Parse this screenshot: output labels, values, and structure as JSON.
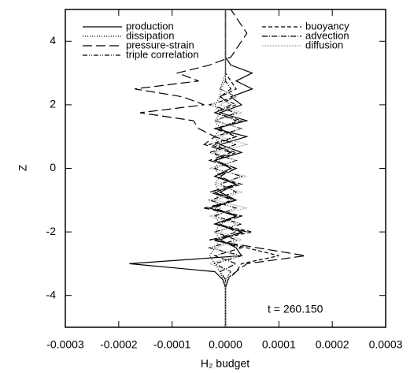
{
  "chart_data": {
    "type": "profile",
    "xlabel": "H₂ budget",
    "ylabel": "Z",
    "annotation": "t = 260.150",
    "xlim": [
      -0.0003,
      0.0003
    ],
    "xticks": [
      {
        "value": -0.0003,
        "label": "-0.0003"
      },
      {
        "value": -0.0002,
        "label": "-0.0002"
      },
      {
        "value": -0.0001,
        "label": "-0.0001"
      },
      {
        "value": 0,
        "label": "0.0000"
      },
      {
        "value": 0.0001,
        "label": "0.0001"
      },
      {
        "value": 0.0002,
        "label": "0.0002"
      },
      {
        "value": 0.0003,
        "label": "0.0003"
      }
    ],
    "ylim": [
      -5,
      5
    ],
    "yticks": [
      -4,
      -2,
      0,
      2,
      4
    ],
    "z": [
      -5,
      -4.75,
      -4.5,
      -4.25,
      -4,
      -3.75,
      -3.5,
      -3.25,
      -3,
      -2.75,
      -2.5,
      -2.25,
      -2,
      -1.75,
      -1.5,
      -1.25,
      -1,
      -0.75,
      -0.5,
      -0.25,
      0,
      0.25,
      0.5,
      0.75,
      1,
      1.25,
      1.5,
      1.75,
      2,
      2.25,
      2.5,
      2.75,
      3,
      3.25,
      3.5,
      3.75,
      4,
      4.25,
      4.5,
      4.75,
      5
    ],
    "series": [
      {
        "name": "production",
        "color": "#000000",
        "dash": "solid",
        "values": [
          0,
          0,
          0,
          0,
          0,
          0,
          -5e-06,
          -2e-05,
          -0.00018,
          3e-05,
          2e-05,
          -1e-05,
          3e-05,
          -2e-05,
          2e-05,
          -3e-05,
          2e-05,
          -1e-05,
          2e-05,
          -2e-05,
          1e-05,
          -2e-05,
          3e-05,
          -1e-05,
          4e-05,
          -2e-05,
          4e-05,
          -1e-05,
          3e-05,
          1e-05,
          5e-05,
          2e-05,
          5e-05,
          1e-05,
          0,
          0,
          0,
          0,
          0,
          0,
          0
        ]
      },
      {
        "name": "dissipation",
        "color": "#000000",
        "dash": "dotted",
        "values": [
          0,
          0,
          0,
          0,
          0,
          0,
          -5e-06,
          -1e-05,
          -2e-05,
          -3e-05,
          -2e-05,
          -1e-05,
          -2e-05,
          -1e-05,
          -2e-05,
          -1e-05,
          -2e-05,
          -1e-05,
          -2e-05,
          -1e-05,
          -2e-05,
          -1e-05,
          -2e-05,
          -1e-05,
          -2e-05,
          -1e-05,
          -2e-05,
          -1e-05,
          -2e-05,
          -1e-05,
          -1e-05,
          -5e-06,
          0,
          0,
          0,
          0,
          0,
          0,
          0,
          0,
          0
        ]
      },
      {
        "name": "pressure-strain",
        "color": "#000000",
        "dash": "long-dash",
        "values": [
          0,
          0,
          0,
          0,
          0,
          0,
          5e-06,
          2e-05,
          4e-05,
          0.00015,
          6e-05,
          -3e-05,
          4e-05,
          -2e-05,
          3e-05,
          -4e-05,
          2e-05,
          -3e-05,
          2e-05,
          -2e-05,
          2e-05,
          -3e-05,
          1e-05,
          -4e-05,
          -2e-05,
          -5e-05,
          -6e-05,
          -0.00016,
          -4e-05,
          -8e-05,
          -0.00017,
          -5e-05,
          -9e-05,
          -3e-05,
          1e-05,
          2e-05,
          3e-05,
          4e-05,
          3e-05,
          2e-05,
          1e-05
        ]
      },
      {
        "name": "triple correlation",
        "color": "#000000",
        "dash": "dash-dot-dot",
        "values": [
          0,
          0,
          0,
          0,
          0,
          0,
          0,
          1e-05,
          -2e-05,
          3e-05,
          -3e-05,
          2e-05,
          -2e-05,
          3e-05,
          -2e-05,
          2e-05,
          -3e-05,
          2e-05,
          -1e-05,
          3e-05,
          -2e-05,
          2e-05,
          -3e-05,
          2e-05,
          -2e-05,
          3e-05,
          -2e-05,
          2e-05,
          -3e-05,
          2e-05,
          -1e-05,
          0,
          0,
          0,
          0,
          0,
          0,
          0,
          0,
          0,
          0
        ]
      },
      {
        "name": "buoyancy",
        "color": "#000000",
        "dash": "dashed",
        "values": [
          0,
          0,
          0,
          0,
          0,
          0,
          0,
          2e-05,
          3e-05,
          0.0001,
          4e-05,
          -2e-05,
          5e-05,
          -2e-05,
          3e-05,
          -3e-05,
          2e-05,
          -2e-05,
          3e-05,
          -2e-05,
          1e-05,
          -2e-05,
          2e-05,
          -3e-05,
          2e-05,
          -2e-05,
          3e-05,
          -2e-05,
          2e-05,
          -1e-05,
          2e-05,
          1e-05,
          0,
          0,
          0,
          0,
          0,
          0,
          0,
          0,
          0
        ]
      },
      {
        "name": "advection",
        "color": "#000000",
        "dash": "dash-dot",
        "values": [
          0,
          0,
          0,
          0,
          0,
          0,
          0,
          -1e-05,
          2e-05,
          -2e-05,
          3e-05,
          -2e-05,
          2e-05,
          -1e-05,
          2e-05,
          -2e-05,
          1e-05,
          -2e-05,
          2e-05,
          -1e-05,
          2e-05,
          -2e-05,
          1e-05,
          -2e-05,
          2e-05,
          -1e-05,
          2e-05,
          -2e-05,
          1e-05,
          -1e-05,
          1e-05,
          0,
          0,
          0,
          0,
          0,
          0,
          0,
          0,
          0,
          0
        ]
      },
      {
        "name": "diffusion",
        "color": "#999999",
        "dash": "fine-dotted",
        "values": [
          0,
          0,
          0,
          0,
          0,
          0,
          0,
          1e-05,
          -3e-05,
          2e-05,
          -2e-05,
          3e-05,
          -1e-05,
          2e-05,
          -3e-05,
          4e-05,
          -2e-05,
          3e-05,
          -2e-05,
          4e-05,
          -3e-05,
          2e-05,
          -2e-05,
          4e-05,
          -1e-05,
          3e-05,
          -2e-05,
          3e-05,
          -1e-05,
          2e-05,
          -1e-05,
          0,
          0,
          0,
          0,
          0,
          0,
          0,
          0,
          0,
          0
        ]
      }
    ]
  }
}
